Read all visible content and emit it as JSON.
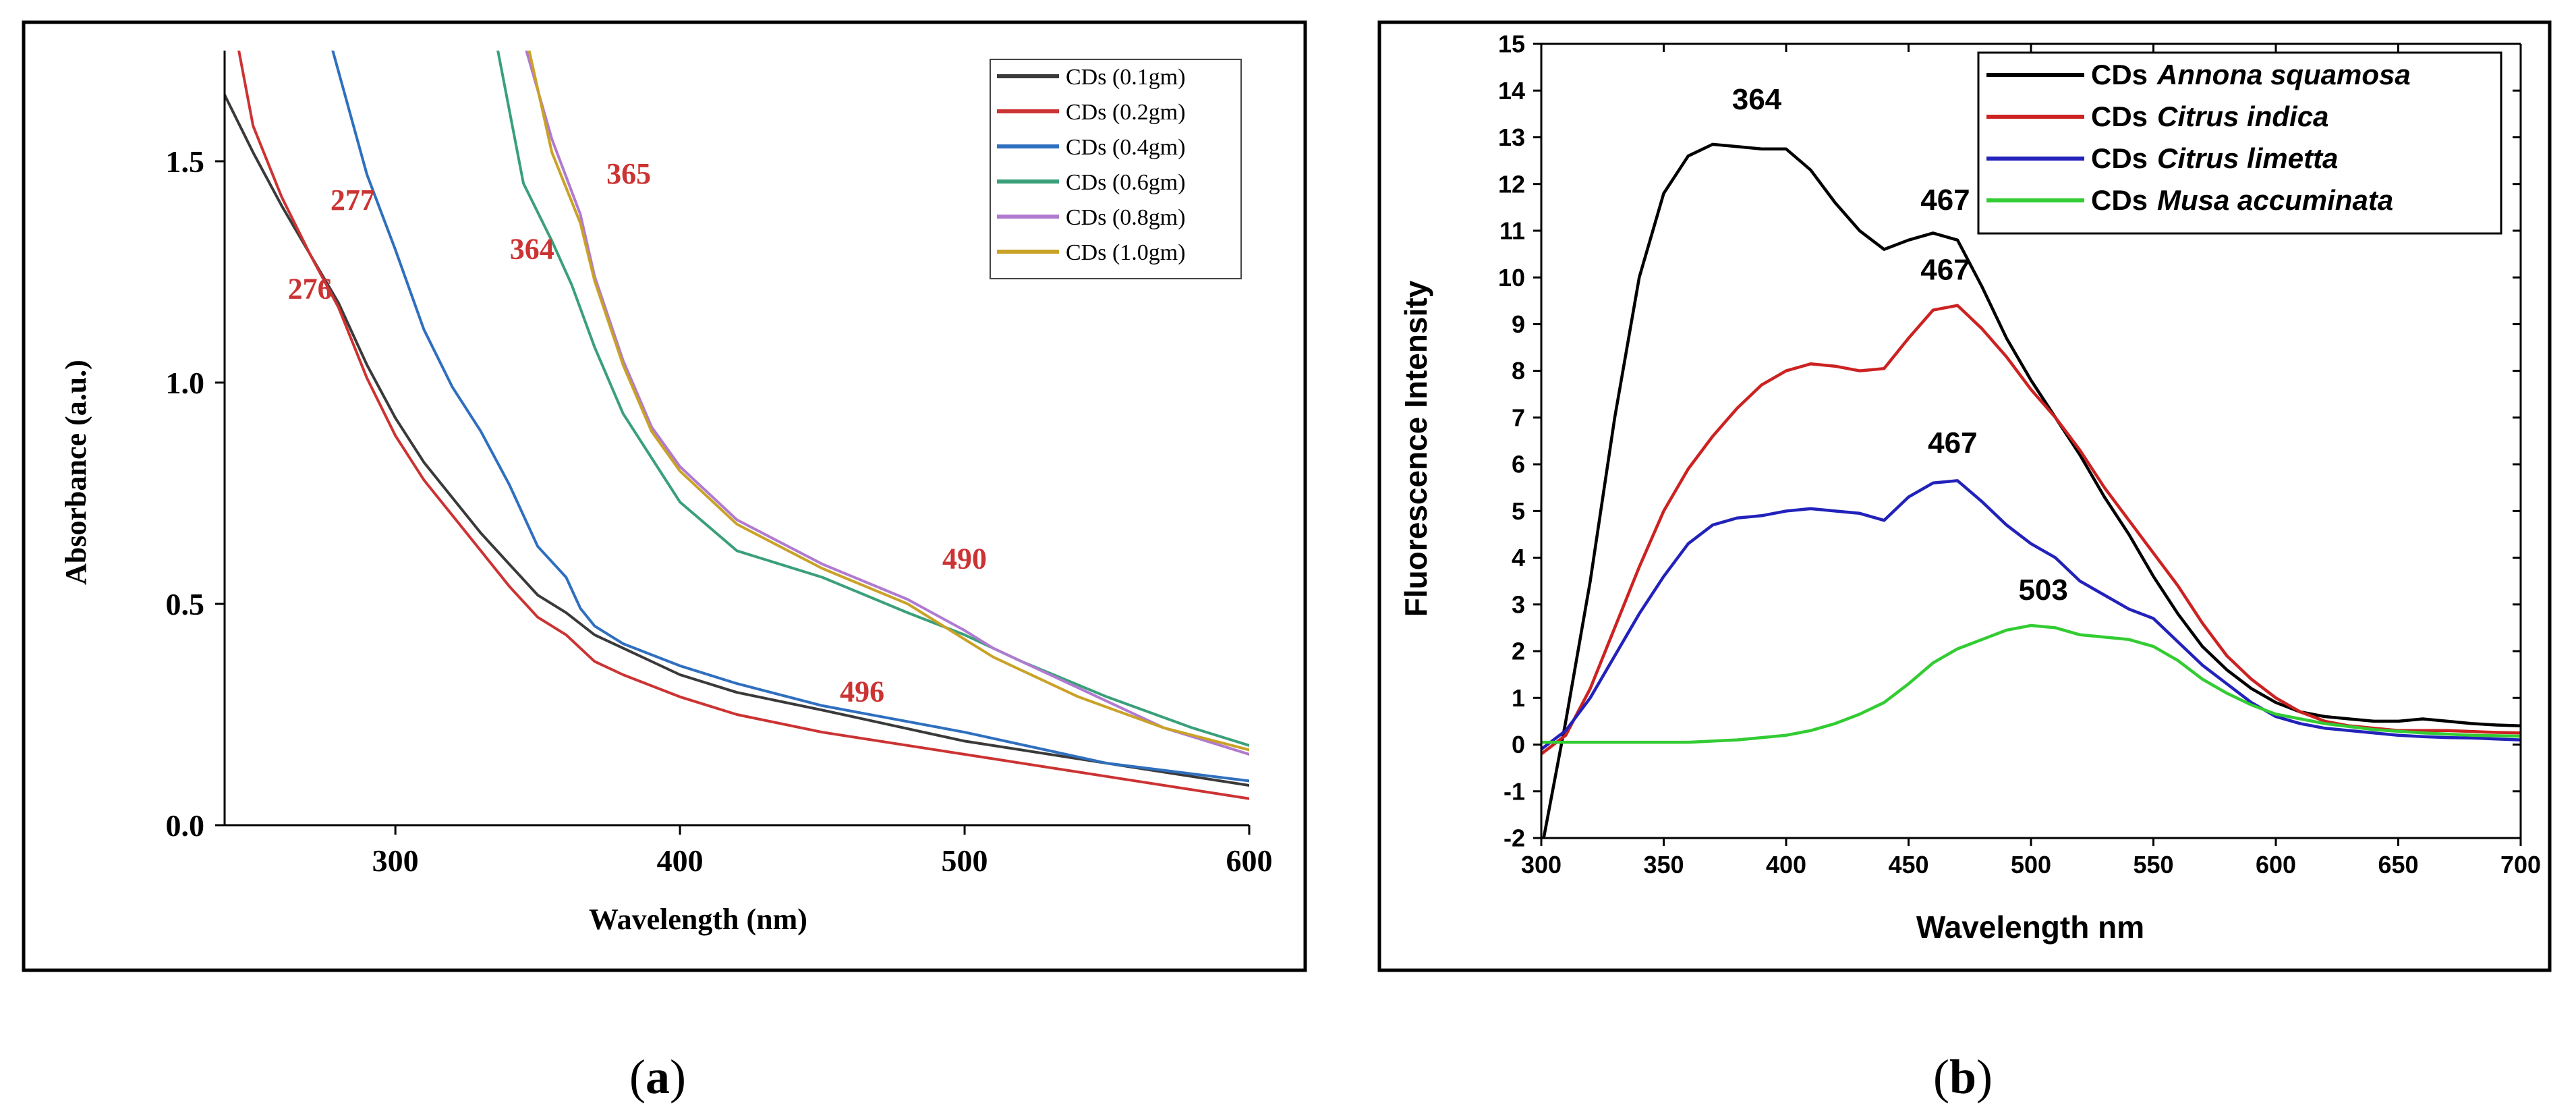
{
  "chart_data": [
    {
      "id": "a",
      "type": "line",
      "panel_label": "(a)",
      "panel_letter": "a",
      "title": "",
      "xlabel": "Wavelength (nm)",
      "ylabel": "Absorbance (a.u.)",
      "xlim": [
        240,
        600
      ],
      "ylim": [
        0.0,
        1.75
      ],
      "xticks": [
        300,
        400,
        500,
        600
      ],
      "xtick_labels": [
        "300",
        "400",
        "500",
        "600"
      ],
      "yticks": [
        0.0,
        0.5,
        1.0,
        1.5
      ],
      "ytick_labels": [
        "0.0",
        "0.5",
        "1.0",
        "1.5"
      ],
      "legend_position": "top-right",
      "series": [
        {
          "name": "CDs (0.1gm)",
          "color": "#3a3a3a",
          "x": [
            240,
            250,
            260,
            270,
            280,
            290,
            300,
            310,
            320,
            330,
            340,
            350,
            360,
            370,
            380,
            400,
            420,
            450,
            500,
            550,
            600
          ],
          "y": [
            1.65,
            1.52,
            1.4,
            1.29,
            1.18,
            1.04,
            0.92,
            0.82,
            0.74,
            0.66,
            0.59,
            0.52,
            0.48,
            0.43,
            0.4,
            0.34,
            0.3,
            0.26,
            0.19,
            0.14,
            0.09
          ]
        },
        {
          "name": "CDs (0.2gm)",
          "color": "#cc3333",
          "x": [
            245,
            250,
            260,
            270,
            280,
            290,
            300,
            310,
            320,
            330,
            340,
            350,
            360,
            370,
            380,
            400,
            420,
            450,
            500,
            550,
            600
          ],
          "y": [
            1.75,
            1.58,
            1.42,
            1.29,
            1.17,
            1.01,
            0.88,
            0.78,
            0.7,
            0.62,
            0.54,
            0.47,
            0.43,
            0.37,
            0.34,
            0.29,
            0.25,
            0.21,
            0.16,
            0.11,
            0.06
          ]
        },
        {
          "name": "CDs (0.4gm)",
          "color": "#2f6fbf",
          "x": [
            278,
            290,
            300,
            310,
            320,
            330,
            340,
            350,
            360,
            365,
            370,
            380,
            400,
            420,
            450,
            500,
            550,
            600
          ],
          "y": [
            1.75,
            1.47,
            1.3,
            1.12,
            0.99,
            0.89,
            0.77,
            0.63,
            0.56,
            0.49,
            0.45,
            0.41,
            0.36,
            0.32,
            0.27,
            0.21,
            0.14,
            0.1
          ]
        },
        {
          "name": "CDs (0.6gm)",
          "color": "#3aa07a",
          "x": [
            336,
            345,
            355,
            362,
            370,
            380,
            390,
            400,
            420,
            450,
            480,
            500,
            520,
            550,
            580,
            600
          ],
          "y": [
            1.75,
            1.45,
            1.32,
            1.22,
            1.08,
            0.93,
            0.83,
            0.73,
            0.62,
            0.56,
            0.48,
            0.43,
            0.37,
            0.29,
            0.22,
            0.18
          ]
        },
        {
          "name": "CDs (0.8gm)",
          "color": "#b07ad0",
          "x": [
            346,
            355,
            365,
            370,
            380,
            390,
            400,
            420,
            450,
            480,
            500,
            510,
            520,
            540,
            570,
            600
          ],
          "y": [
            1.75,
            1.55,
            1.38,
            1.24,
            1.05,
            0.9,
            0.81,
            0.69,
            0.59,
            0.51,
            0.44,
            0.4,
            0.37,
            0.31,
            0.22,
            0.16
          ]
        },
        {
          "name": "CDs (1.0gm)",
          "color": "#c9a227",
          "x": [
            347,
            355,
            365,
            370,
            380,
            390,
            400,
            420,
            450,
            480,
            500,
            510,
            520,
            540,
            570,
            600
          ],
          "y": [
            1.75,
            1.52,
            1.36,
            1.23,
            1.04,
            0.89,
            0.8,
            0.68,
            0.58,
            0.5,
            0.42,
            0.38,
            0.35,
            0.29,
            0.22,
            0.17
          ]
        }
      ],
      "annotations": [
        {
          "text": "277",
          "x": 285,
          "y": 1.39,
          "color": "#cc3333"
        },
        {
          "text": "276",
          "x": 270,
          "y": 1.19,
          "color": "#cc3333"
        },
        {
          "text": "364",
          "x": 348,
          "y": 1.28,
          "color": "#cc3333"
        },
        {
          "text": "365",
          "x": 382,
          "y": 1.45,
          "color": "#cc3333"
        },
        {
          "text": "490",
          "x": 500,
          "y": 0.58,
          "color": "#cc3333"
        },
        {
          "text": "496",
          "x": 464,
          "y": 0.28,
          "color": "#cc3333"
        }
      ]
    },
    {
      "id": "b",
      "type": "line",
      "panel_label": "(b)",
      "panel_letter": "b",
      "title": "",
      "xlabel": "Wavelength nm",
      "ylabel": "Fluorescence Intensity",
      "xlim": [
        300,
        700
      ],
      "ylim": [
        -2,
        15
      ],
      "xticks": [
        300,
        350,
        400,
        450,
        500,
        550,
        600,
        650,
        700
      ],
      "xtick_labels": [
        "300",
        "350",
        "400",
        "450",
        "500",
        "550",
        "600",
        "650",
        "700"
      ],
      "yticks": [
        -2,
        -1,
        0,
        1,
        2,
        3,
        4,
        5,
        6,
        7,
        8,
        9,
        10,
        11,
        12,
        13,
        14,
        15
      ],
      "ytick_labels": [
        "-2",
        "-1",
        "0",
        "1",
        "2",
        "3",
        "4",
        "5",
        "6",
        "7",
        "8",
        "9",
        "10",
        "11",
        "12",
        "13",
        "14",
        "15"
      ],
      "legend_position": "top-right",
      "series": [
        {
          "name_prefix": "CDs",
          "name_species": "Annona squamosa",
          "color": "#000000",
          "x": [
            301,
            310,
            320,
            330,
            340,
            350,
            360,
            370,
            380,
            390,
            400,
            410,
            420,
            430,
            440,
            450,
            460,
            470,
            480,
            490,
            500,
            510,
            520,
            530,
            540,
            550,
            560,
            570,
            580,
            590,
            600,
            610,
            620,
            630,
            640,
            650,
            660,
            670,
            680,
            690,
            700
          ],
          "y": [
            -2.0,
            0.5,
            3.5,
            7.0,
            10.0,
            11.8,
            12.6,
            12.85,
            12.8,
            12.75,
            12.75,
            12.3,
            11.6,
            11.0,
            10.6,
            10.8,
            10.95,
            10.8,
            9.8,
            8.7,
            7.8,
            7.0,
            6.2,
            5.3,
            4.5,
            3.6,
            2.8,
            2.1,
            1.6,
            1.2,
            0.9,
            0.7,
            0.6,
            0.55,
            0.5,
            0.5,
            0.55,
            0.5,
            0.45,
            0.42,
            0.4
          ]
        },
        {
          "name_prefix": "CDs",
          "name_species": "Citrus indica",
          "color": "#cc2222",
          "x": [
            300,
            310,
            320,
            330,
            340,
            350,
            360,
            370,
            380,
            390,
            400,
            410,
            420,
            430,
            440,
            450,
            460,
            470,
            480,
            490,
            500,
            510,
            520,
            530,
            540,
            550,
            560,
            570,
            580,
            590,
            600,
            610,
            620,
            630,
            640,
            650,
            660,
            670,
            680,
            690,
            700
          ],
          "y": [
            -0.2,
            0.2,
            1.2,
            2.5,
            3.8,
            5.0,
            5.9,
            6.6,
            7.2,
            7.7,
            8.0,
            8.15,
            8.1,
            8.0,
            8.05,
            8.7,
            9.3,
            9.4,
            8.9,
            8.3,
            7.6,
            7.0,
            6.3,
            5.5,
            4.8,
            4.1,
            3.4,
            2.6,
            1.9,
            1.4,
            1.0,
            0.7,
            0.5,
            0.4,
            0.35,
            0.3,
            0.3,
            0.3,
            0.28,
            0.26,
            0.25
          ]
        },
        {
          "name_prefix": "CDs",
          "name_species": "Citrus limetta",
          "color": "#2222bb",
          "x": [
            300,
            310,
            320,
            330,
            340,
            350,
            360,
            370,
            380,
            390,
            400,
            410,
            420,
            430,
            440,
            450,
            460,
            470,
            480,
            490,
            500,
            510,
            520,
            530,
            540,
            550,
            560,
            570,
            580,
            590,
            600,
            610,
            620,
            630,
            640,
            650,
            660,
            670,
            680,
            690,
            700
          ],
          "y": [
            -0.1,
            0.3,
            1.0,
            1.9,
            2.8,
            3.6,
            4.3,
            4.7,
            4.85,
            4.9,
            5.0,
            5.05,
            5.0,
            4.95,
            4.8,
            5.3,
            5.6,
            5.65,
            5.2,
            4.7,
            4.3,
            4.0,
            3.5,
            3.2,
            2.9,
            2.7,
            2.2,
            1.7,
            1.3,
            0.9,
            0.6,
            0.45,
            0.35,
            0.3,
            0.25,
            0.2,
            0.17,
            0.15,
            0.14,
            0.12,
            0.1
          ]
        },
        {
          "name_prefix": "CDs",
          "name_species": "Musa accuminata",
          "color": "#33cc33",
          "x": [
            300,
            320,
            340,
            360,
            380,
            400,
            410,
            420,
            430,
            440,
            450,
            460,
            470,
            480,
            490,
            500,
            510,
            520,
            530,
            540,
            550,
            560,
            570,
            580,
            590,
            600,
            620,
            640,
            660,
            680,
            700
          ],
          "y": [
            0.05,
            0.05,
            0.05,
            0.05,
            0.1,
            0.2,
            0.3,
            0.45,
            0.65,
            0.9,
            1.3,
            1.75,
            2.05,
            2.25,
            2.45,
            2.55,
            2.5,
            2.35,
            2.3,
            2.25,
            2.1,
            1.8,
            1.4,
            1.1,
            0.85,
            0.65,
            0.45,
            0.32,
            0.25,
            0.2,
            0.18
          ]
        }
      ],
      "annotations": [
        {
          "text": "364",
          "x": 388,
          "y": 13.6,
          "color": "#000000"
        },
        {
          "text": "467",
          "x": 465,
          "y": 11.45,
          "color": "#000000"
        },
        {
          "text": "467",
          "x": 465,
          "y": 9.95,
          "color": "#000000"
        },
        {
          "text": "467",
          "x": 468,
          "y": 6.25,
          "color": "#000000"
        },
        {
          "text": "503",
          "x": 505,
          "y": 3.1,
          "color": "#000000"
        }
      ]
    }
  ]
}
